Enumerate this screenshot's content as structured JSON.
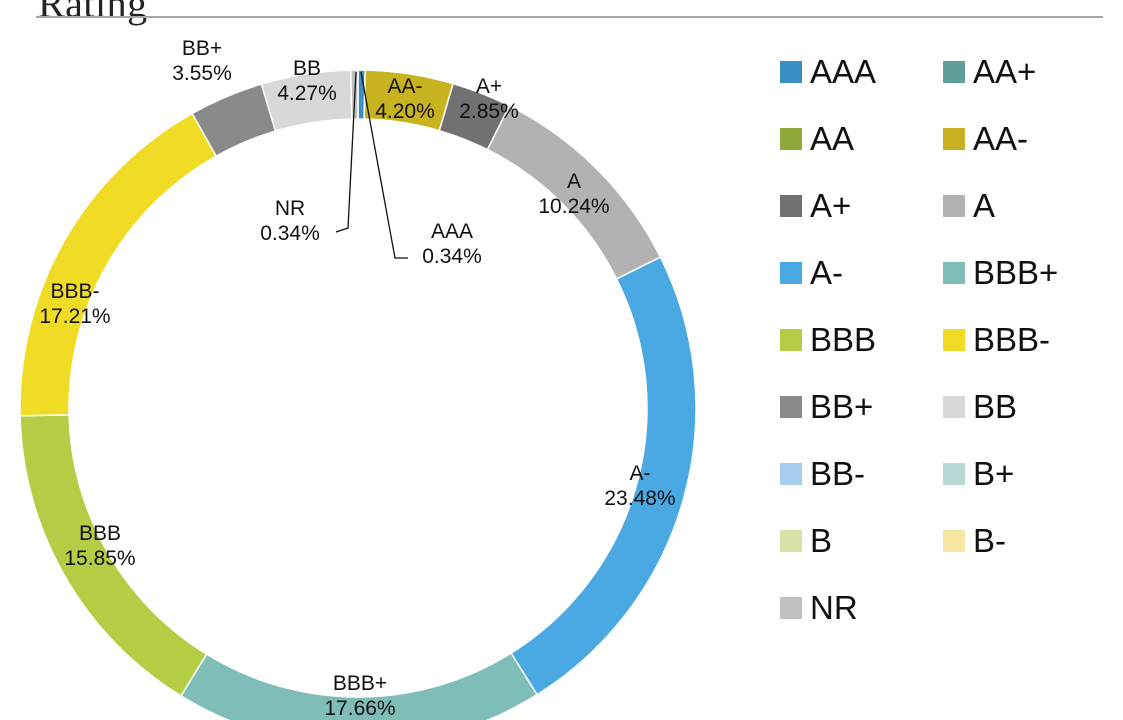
{
  "page": {
    "title": "Rating"
  },
  "chart_data": {
    "type": "pie",
    "variant": "donut",
    "legend_position": "right",
    "categories": [
      "AAA",
      "AA+",
      "AA",
      "AA-",
      "A+",
      "A",
      "A-",
      "BBB+",
      "BBB",
      "BBB-",
      "BB+",
      "BB",
      "BB-",
      "B+",
      "B",
      "B-",
      "NR"
    ],
    "values": [
      0.34,
      0,
      0,
      4.2,
      2.85,
      10.24,
      23.48,
      17.66,
      15.85,
      17.21,
      3.55,
      4.27,
      0,
      0,
      0,
      0,
      0.34
    ],
    "data_labels": [
      "0.34%",
      "",
      "",
      "4.20%",
      "2.85%",
      "10.24%",
      "23.48%",
      "17.66%",
      "15.85%",
      "17.21%",
      "3.55%",
      "4.27%",
      "",
      "",
      "",
      "",
      "0.34%"
    ],
    "colors": [
      "#3a8fc4",
      "#5f9e9b",
      "#8fa83a",
      "#c7b21f",
      "#717171",
      "#b2b2b2",
      "#4aa9e2",
      "#7fbdb8",
      "#b5cd45",
      "#f0dc25",
      "#8a8a8a",
      "#d8d8d8",
      "#a9cdee",
      "#b9d9d7",
      "#d6e2a6",
      "#f5e7a2",
      "#c0c0c0"
    ]
  }
}
